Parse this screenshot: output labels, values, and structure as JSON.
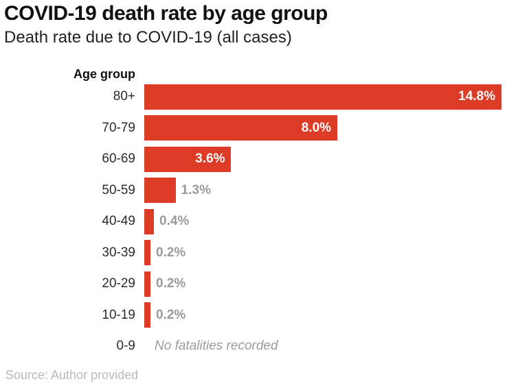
{
  "header": {
    "title": "COVID-19 death rate by age group",
    "subtitle": "Death rate due to COVID-19 (all cases)"
  },
  "chart_data": {
    "type": "bar",
    "orientation": "horizontal",
    "title": "COVID-19 death rate by age group",
    "subtitle": "Death rate due to COVID-19 (all cases)",
    "ylabel": "Age group",
    "xlabel": "",
    "xlim": [
      0,
      14.8
    ],
    "grid": false,
    "legend": false,
    "categories": [
      "80+",
      "70-79",
      "60-69",
      "50-59",
      "40-49",
      "30-39",
      "20-29",
      "10-19",
      "0-9"
    ],
    "values": [
      14.8,
      8.0,
      3.6,
      1.3,
      0.4,
      0.2,
      0.2,
      0.2,
      null
    ],
    "value_labels": [
      "14.8%",
      "8.0%",
      "3.6%",
      "1.3%",
      "0.4%",
      "0.2%",
      "0.2%",
      "0.2%",
      null
    ],
    "null_annotation": "No fatalities recorded",
    "colors": {
      "bar": "#dc3b26",
      "label_inside": "#ffffff",
      "label_outside": "#9a9a9a"
    }
  },
  "footer": {
    "source": "Source: Author provided"
  }
}
